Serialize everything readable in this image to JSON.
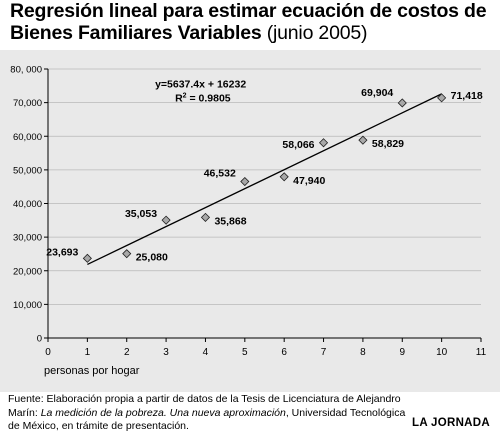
{
  "title": {
    "line1": "Regresión lineal para estimar ecuación de costos de",
    "line2_bold": "Bienes Familiares Variables",
    "line2_normal": " (junio 2005)"
  },
  "footer": {
    "part1": "Fuente: Elaboración propia a partir de datos de la Tesis de Licenciatura de Alejandro Marín: ",
    "italic": "La medición de la pobreza. Una nueva aproximación",
    "part2": ", Universidad Tecnológica de México, en trámite de presentación."
  },
  "brand": "LA JORNADA",
  "chart_data": {
    "type": "scatter",
    "xlabel": "personas por hogar",
    "ylabel": "",
    "xlim": [
      0,
      11
    ],
    "ylim": [
      0,
      80000
    ],
    "x_ticks": [
      0,
      1,
      2,
      3,
      4,
      5,
      6,
      7,
      8,
      9,
      10,
      11
    ],
    "y_ticks": [
      0,
      10000,
      20000,
      30000,
      40000,
      50000,
      60000,
      70000,
      80000
    ],
    "y_tick_labels": [
      "0",
      "10,000",
      "20,000",
      "30,000",
      "40,000",
      "50,000",
      "60,000",
      "70,000",
      "80, 000"
    ],
    "grid": "horizontal",
    "points": [
      {
        "x": 1,
        "y": 23693,
        "label": "23,693"
      },
      {
        "x": 2,
        "y": 25080,
        "label": "25,080"
      },
      {
        "x": 3,
        "y": 35053,
        "label": "35,053"
      },
      {
        "x": 4,
        "y": 35868,
        "label": "35,868"
      },
      {
        "x": 5,
        "y": 46532,
        "label": "46,532"
      },
      {
        "x": 6,
        "y": 47940,
        "label": "47,940"
      },
      {
        "x": 7,
        "y": 58066,
        "label": "58,066"
      },
      {
        "x": 8,
        "y": 58829,
        "label": "58,829"
      },
      {
        "x": 9,
        "y": 69904,
        "label": "69,904"
      },
      {
        "x": 10,
        "y": 71418,
        "label": "71,418"
      }
    ],
    "trendline": {
      "slope": 5637.4,
      "intercept": 16232,
      "x_range": [
        1,
        10
      ],
      "equation": "y=5637.4x + 16232",
      "r2_prefix": "R",
      "r2_exp": "2",
      "r2_value": " = 0.9805"
    },
    "colors": {
      "background": "#e9e9e9",
      "marker_fill": "#a8a8a8",
      "line": "#000000"
    }
  }
}
